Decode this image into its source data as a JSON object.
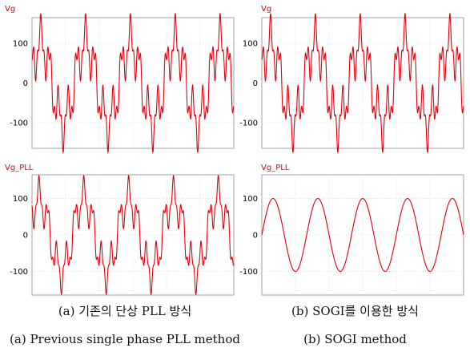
{
  "colors": {
    "trace": "#e0000e",
    "series_label": "#e0000e",
    "grid": "#d8d8d8",
    "frame": "#a0a0a0",
    "tick": "#000000"
  },
  "chart_data": [
    {
      "type": "line",
      "id": "a-top",
      "series_name": "Vg",
      "ylim": [
        -165,
        165
      ],
      "yticks": [
        {
          "v": 100,
          "label": "100"
        },
        {
          "v": 0,
          "label": "0"
        },
        {
          "v": -100,
          "label": "-100"
        }
      ],
      "grid": true,
      "cycles": 4.5,
      "waveform": {
        "fundamental": 100,
        "h5": 50,
        "h13": 25,
        "phase": 0.35
      }
    },
    {
      "type": "line",
      "id": "b-top",
      "series_name": "Vg",
      "ylim": [
        -165,
        165
      ],
      "yticks": [
        {
          "v": 100,
          "label": "100"
        },
        {
          "v": 0,
          "label": "0"
        },
        {
          "v": -100,
          "label": "-100"
        }
      ],
      "grid": true,
      "cycles": 4.5,
      "waveform": {
        "fundamental": 100,
        "h5": 50,
        "h13": 25,
        "phase": 0.35
      }
    },
    {
      "type": "line",
      "id": "a-bottom",
      "series_name": "Vg_PLL",
      "ylim": [
        -165,
        165
      ],
      "yticks": [
        {
          "v": 100,
          "label": "100"
        },
        {
          "v": 0,
          "label": "0"
        },
        {
          "v": -100,
          "label": "-100"
        }
      ],
      "grid": true,
      "cycles": 4.5,
      "waveform": {
        "fundamental": 100,
        "h5": 45,
        "h13": 18,
        "phase": 0.6
      }
    },
    {
      "type": "line",
      "id": "b-bottom",
      "series_name": "Vg_PLL",
      "ylim": [
        -165,
        165
      ],
      "yticks": [
        {
          "v": 100,
          "label": "100"
        },
        {
          "v": 0,
          "label": "0"
        },
        {
          "v": -100,
          "label": "-100"
        }
      ],
      "grid": true,
      "cycles": 4.5,
      "waveform": {
        "fundamental": 100,
        "h5": 0,
        "h13": 0,
        "phase": 0
      }
    }
  ],
  "captions": {
    "a_kr": "(a)  기존의  단상  PLL  방식",
    "b_kr": "(b)  SOGI를  이용한  방식",
    "a_en": "(a)  Previous  single  phase  PLL  method",
    "b_en": "(b)  SOGI  method"
  }
}
